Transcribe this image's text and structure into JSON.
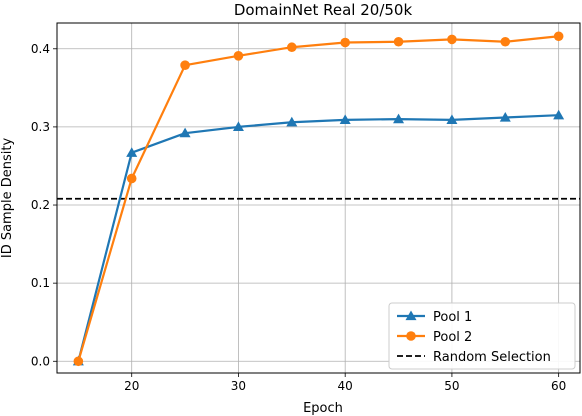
{
  "chart_data": {
    "type": "line",
    "title": "DomainNet Real 20/50k",
    "xlabel": "Epoch",
    "ylabel": "ID Sample Density",
    "x": [
      15,
      20,
      25,
      30,
      35,
      40,
      45,
      50,
      55,
      60
    ],
    "xlim": [
      13,
      62
    ],
    "ylim": [
      -0.015,
      0.433
    ],
    "xticks": [
      20,
      30,
      40,
      50,
      60
    ],
    "yticks": [
      0.0,
      0.1,
      0.2,
      0.3,
      0.4
    ],
    "grid": true,
    "legend_position": "lower-right",
    "series": [
      {
        "name": "Pool 1",
        "marker": "triangle",
        "color": "#1f77b4",
        "values": [
          0.0,
          0.267,
          0.292,
          0.3,
          0.306,
          0.309,
          0.31,
          0.309,
          0.312,
          0.315
        ]
      },
      {
        "name": "Pool 2",
        "marker": "circle",
        "color": "#ff7f0e",
        "values": [
          0.0,
          0.234,
          0.379,
          0.391,
          0.402,
          0.408,
          0.409,
          0.412,
          0.409,
          0.416
        ]
      }
    ],
    "reference_lines": [
      {
        "name": "Random Selection",
        "y": 0.208,
        "style": "dashed",
        "color": "#000000"
      }
    ]
  }
}
